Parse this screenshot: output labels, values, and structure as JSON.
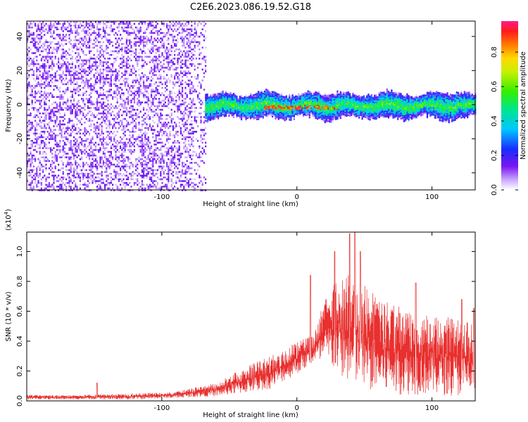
{
  "title": "C2E6.2023.086.19.52.G18",
  "chart_data": [
    {
      "type": "heatmap",
      "xlabel": "Height of straight line (km)",
      "ylabel": "Frequency (Hz)",
      "xlim": [
        -200,
        132
      ],
      "ylim": [
        -50,
        49
      ],
      "x_ticks": [
        -100,
        0,
        100
      ],
      "y_ticks": [
        -40,
        -20,
        0,
        20,
        40
      ],
      "noise_band": {
        "x_range": [
          -200,
          -68
        ],
        "level": 0.15
      },
      "signal_band": {
        "x_range": [
          -68,
          132
        ],
        "center_hz": 0,
        "halfwidth_hz": 5,
        "level": 0.45
      },
      "peak": {
        "x_range": [
          -25,
          30
        ],
        "center_hz": -1,
        "level": 0.95
      },
      "colorbar": {
        "label": "Normalized spectral amplitude",
        "ticks": [
          0.0,
          0.2,
          0.4,
          0.6,
          0.8
        ],
        "range": [
          0,
          0.98
        ]
      },
      "colors": {
        "low": "#7a14f0",
        "mid": "#00c8ff",
        "high": "#ff1a1a"
      }
    },
    {
      "type": "line",
      "xlabel": "Height of straight line (km)",
      "ylabel": "SNR (10 * v/v)",
      "yunit": "(x10",
      "yunit_exp": "4",
      "xlim": [
        -200,
        132
      ],
      "ylim": [
        0,
        1.13
      ],
      "x_ticks": [
        -100,
        0,
        100
      ],
      "y_ticks": [
        0.0,
        0.2,
        0.4,
        0.6,
        0.8,
        1.0
      ],
      "color": "#e8302f",
      "envelope": [
        {
          "x": -200,
          "lo": 0.01,
          "hi": 0.04
        },
        {
          "x": -160,
          "lo": 0.01,
          "hi": 0.04
        },
        {
          "x": -120,
          "lo": 0.01,
          "hi": 0.05
        },
        {
          "x": -90,
          "lo": 0.02,
          "hi": 0.06
        },
        {
          "x": -60,
          "lo": 0.03,
          "hi": 0.12
        },
        {
          "x": -40,
          "lo": 0.05,
          "hi": 0.22
        },
        {
          "x": -20,
          "lo": 0.08,
          "hi": 0.3
        },
        {
          "x": 0,
          "lo": 0.18,
          "hi": 0.4
        },
        {
          "x": 12,
          "lo": 0.25,
          "hi": 0.44
        },
        {
          "x": 25,
          "lo": 0.22,
          "hi": 0.8
        },
        {
          "x": 40,
          "lo": 0.1,
          "hi": 0.85
        },
        {
          "x": 60,
          "lo": 0.05,
          "hi": 0.7
        },
        {
          "x": 80,
          "lo": 0.04,
          "hi": 0.62
        },
        {
          "x": 100,
          "lo": 0.04,
          "hi": 0.58
        },
        {
          "x": 120,
          "lo": 0.03,
          "hi": 0.55
        },
        {
          "x": 132,
          "lo": 0.03,
          "hi": 0.5
        }
      ],
      "spikes": [
        {
          "x": -148,
          "y": 0.12
        },
        {
          "x": 10,
          "y": 0.84
        },
        {
          "x": 28,
          "y": 1.0
        },
        {
          "x": 39,
          "y": 1.12
        },
        {
          "x": 43,
          "y": 1.13
        },
        {
          "x": 47,
          "y": 1.0
        },
        {
          "x": 88,
          "y": 0.79
        },
        {
          "x": 122,
          "y": 0.68
        },
        {
          "x": 131,
          "y": 0.62
        }
      ]
    }
  ]
}
